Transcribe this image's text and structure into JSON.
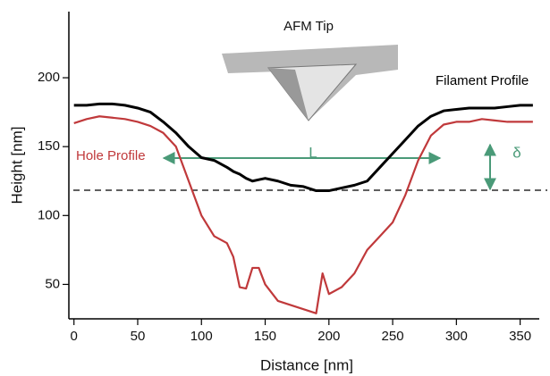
{
  "chart_data": {
    "type": "line",
    "xlabel": "Distance [nm]",
    "ylabel": "Height [nm]",
    "annotations": {
      "tip": "AFM Tip",
      "length": "L",
      "depth": "δ"
    },
    "x": [
      0,
      10,
      20,
      30,
      40,
      50,
      60,
      70,
      80,
      90,
      100,
      110,
      120,
      125,
      130,
      135,
      140,
      145,
      150,
      160,
      170,
      180,
      190,
      195,
      200,
      210,
      220,
      230,
      240,
      250,
      260,
      270,
      280,
      290,
      300,
      310,
      320,
      330,
      340,
      350,
      360
    ],
    "series": [
      {
        "name": "Filament Profile",
        "color": "#000000",
        "values": [
          180,
          180,
          181,
          181,
          180,
          178,
          175,
          168,
          160,
          150,
          142,
          140,
          135,
          132,
          130,
          127,
          125,
          126,
          127,
          125,
          122,
          121,
          118,
          118,
          118,
          120,
          122,
          125,
          135,
          145,
          155,
          165,
          172,
          176,
          177,
          178,
          178,
          178,
          179,
          180,
          180
        ]
      },
      {
        "name": "Hole Profile",
        "color": "#c0393b",
        "values": [
          167,
          170,
          172,
          171,
          170,
          168,
          165,
          160,
          150,
          125,
          100,
          85,
          80,
          70,
          48,
          47,
          62,
          62,
          50,
          38,
          35,
          32,
          29,
          58,
          43,
          48,
          58,
          75,
          85,
          95,
          115,
          140,
          158,
          166,
          168,
          168,
          170,
          169,
          168,
          168,
          168
        ]
      }
    ],
    "xlim": [
      -4,
      365
    ],
    "ylim": [
      25,
      248
    ],
    "xticks": [
      0,
      50,
      100,
      150,
      200,
      250,
      300,
      350
    ],
    "yticks": [
      50,
      100,
      150,
      200
    ]
  }
}
